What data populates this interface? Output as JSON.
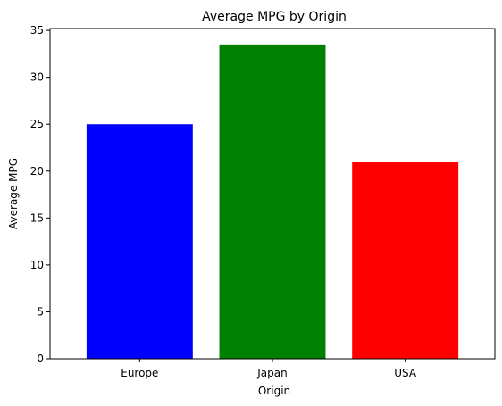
{
  "chart_data": {
    "type": "bar",
    "title": "Average MPG by Origin",
    "xlabel": "Origin",
    "ylabel": "Average MPG",
    "categories": [
      "Europe",
      "Japan",
      "USA"
    ],
    "values": [
      25.0,
      33.5,
      21.0
    ],
    "colors": [
      "#0000ff",
      "#008000",
      "#ff0000"
    ],
    "ylim": [
      0,
      35.2
    ],
    "yticks": [
      0,
      5,
      10,
      15,
      20,
      25,
      30,
      35
    ],
    "grid": false,
    "legend": "none"
  }
}
